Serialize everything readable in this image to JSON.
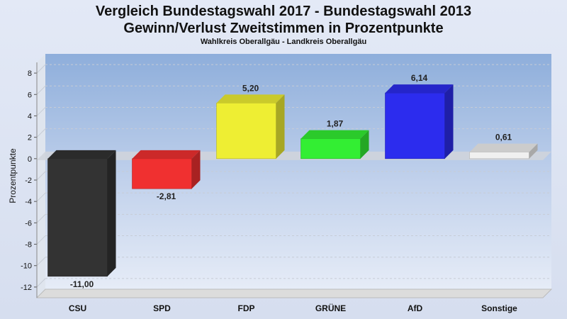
{
  "chart_data": {
    "type": "bar",
    "title": "Vergleich Bundestagswahl 2017 - Bundestagswahl 2013",
    "title2": "Gewinn/Verlust Zweitstimmen in Prozentpunkte",
    "subtitle": "Wahlkreis Oberallgäu - Landkreis Oberallgäu",
    "xlabel": "",
    "ylabel": "Prozentpunkte",
    "ylim": [
      -13,
      9
    ],
    "yticks": [
      8,
      6,
      4,
      2,
      0,
      -2,
      -4,
      -6,
      -8,
      -10,
      -12
    ],
    "grid": true,
    "categories": [
      "CSU",
      "SPD",
      "FDP",
      "GRÜNE",
      "AfD",
      "Sonstige"
    ],
    "values": [
      -11.0,
      -2.81,
      5.2,
      1.87,
      6.14,
      0.61
    ],
    "value_labels": [
      "-11,00",
      "-2,81",
      "5,20",
      "1,87",
      "6,14",
      "0,61"
    ],
    "colors": [
      "#333333",
      "#f03030",
      "#eeee33",
      "#33ee33",
      "#2c2cee",
      "#f0f0f0"
    ]
  }
}
